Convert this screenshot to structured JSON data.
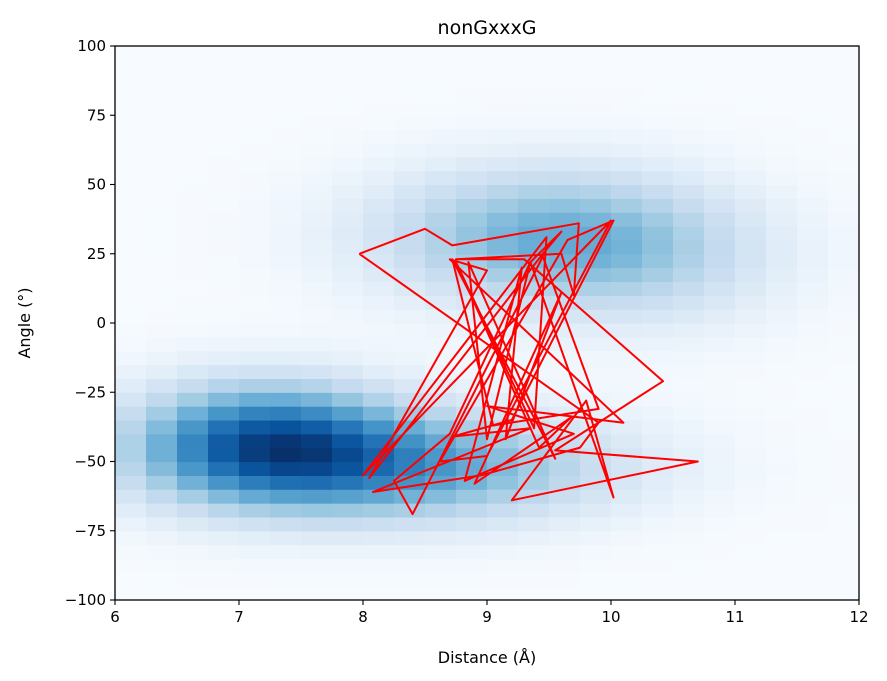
{
  "chart_data": {
    "type": "heatmap",
    "title": "nonGxxxG",
    "xlabel": "Distance (Å)",
    "ylabel": "Angle (°)",
    "xlim": [
      6,
      12
    ],
    "ylim": [
      -100,
      100
    ],
    "x_ticks": [
      "6",
      "7",
      "8",
      "9",
      "10",
      "11",
      "12"
    ],
    "y_ticks": [
      "100",
      "75",
      "50",
      "25",
      "0",
      "−25",
      "−50",
      "−75",
      "−100"
    ],
    "grid": false,
    "colormap": "Blues",
    "heatmap_bins": {
      "x_bins": 24,
      "y_bins": 40
    },
    "density_modes": [
      {
        "x": 9.4,
        "y": 32,
        "sx": 0.95,
        "sy": 17,
        "weight": 0.6
      },
      {
        "x": 7.2,
        "y": -42,
        "sx": 0.75,
        "sy": 15,
        "weight": 0.95
      },
      {
        "x": 8.3,
        "y": -52,
        "sx": 1.2,
        "sy": 14,
        "weight": 0.75
      },
      {
        "x": 10.3,
        "y": 22,
        "sx": 0.8,
        "sy": 18,
        "weight": 0.25
      }
    ],
    "series": [
      {
        "color": "#ff0000",
        "type": "line",
        "x": [
          7.97,
          8.5,
          8.72,
          9.74,
          9.7,
          9.6,
          8.75,
          9.3,
          10.42,
          9.55,
          10.7,
          9.2,
          9.8,
          10.02,
          9.35,
          9.0,
          8.85,
          9.55,
          8.72,
          9.05,
          9.9,
          9.45,
          8.4,
          8.25,
          8.7,
          9.35,
          9.6,
          9.45,
          8.05,
          9.0,
          8.7,
          10.1,
          9.0,
          9.7,
          8.82,
          9.28,
          9.15,
          9.6,
          8.9,
          9.68,
          9.42,
          8.75,
          9.38,
          9.48,
          8.0,
          10.0,
          9.0,
          8.62,
          9.65,
          10.02,
          9.2,
          8.72,
          9.35,
          8.08,
          8.95,
          9.75,
          9.9,
          7.97
        ],
        "y": [
          25,
          34,
          28,
          36,
          10,
          25,
          23,
          23,
          -21,
          -46,
          -50,
          -64,
          -28,
          -63,
          22,
          -42,
          22,
          -49,
          23,
          -37,
          -31,
          24,
          -69,
          -57,
          -40,
          22,
          33,
          25,
          -56,
          19,
          23,
          -36,
          -30,
          -40,
          -57,
          20,
          -42,
          11,
          -58,
          -34,
          -45,
          22,
          -38,
          31,
          -55,
          37,
          -48,
          -50,
          30,
          37,
          -35,
          -41,
          -38,
          -61,
          -55,
          -45,
          -36,
          25
        ]
      }
    ]
  }
}
